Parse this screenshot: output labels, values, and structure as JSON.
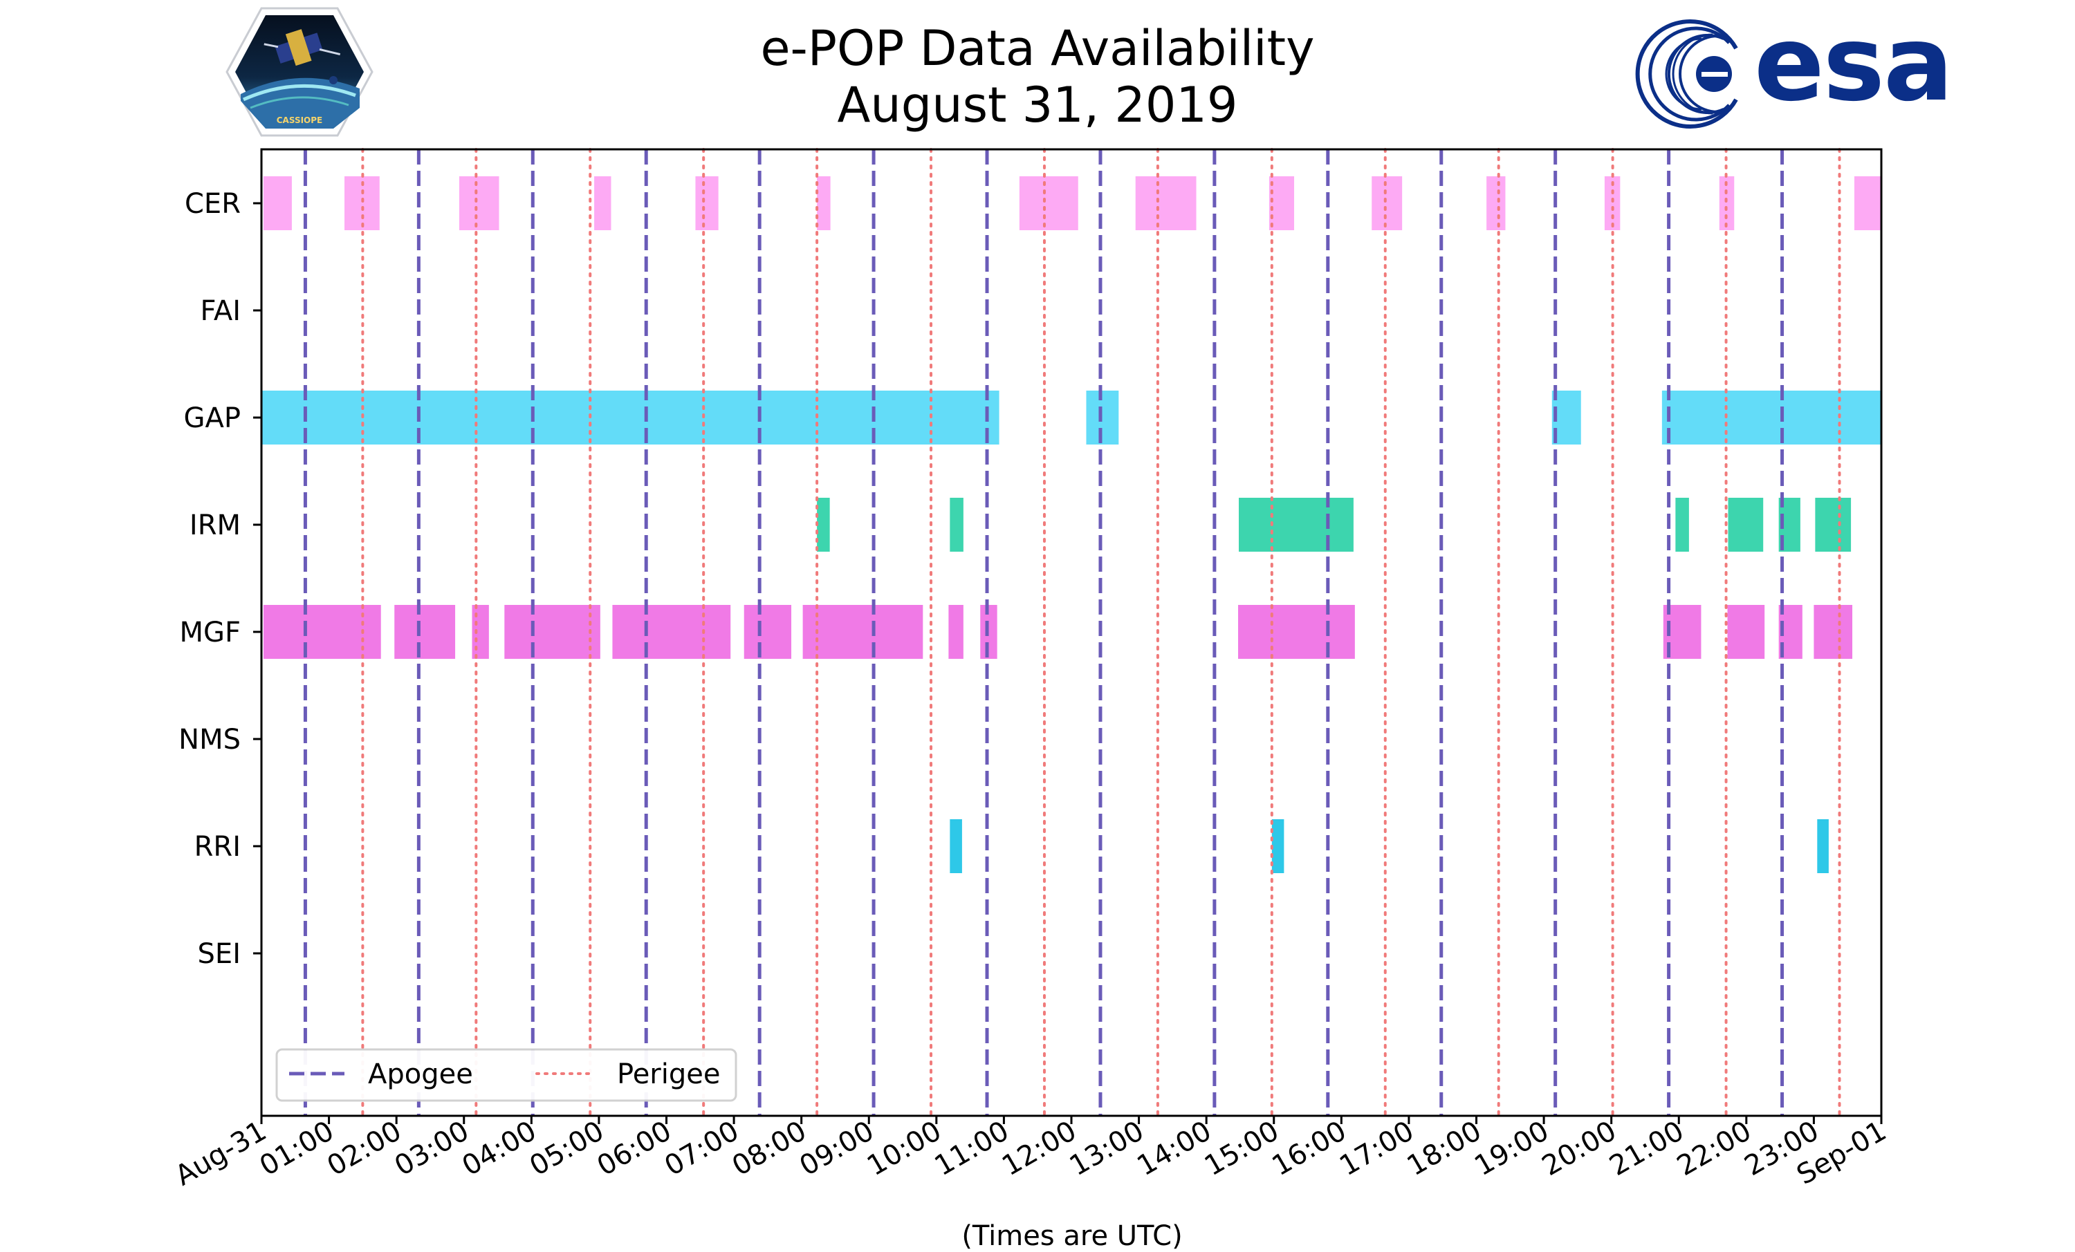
{
  "chart_data": {
    "type": "broken_barh",
    "title": "e-POP Data Availability",
    "subtitle": "August 31, 2019",
    "xlabel": "(Times are UTC)",
    "xlim_hours": [
      0,
      24
    ],
    "x_tick_labels": [
      "Aug-31",
      "01:00",
      "02:00",
      "03:00",
      "04:00",
      "05:00",
      "06:00",
      "07:00",
      "08:00",
      "09:00",
      "10:00",
      "11:00",
      "12:00",
      "13:00",
      "14:00",
      "15:00",
      "16:00",
      "17:00",
      "18:00",
      "19:00",
      "20:00",
      "21:00",
      "22:00",
      "23:00",
      "Sep-01"
    ],
    "categories": [
      "CER",
      "FAI",
      "GAP",
      "IRM",
      "MGF",
      "NMS",
      "RRI",
      "SEI"
    ],
    "series": [
      {
        "name": "CER",
        "color": "#fdaaf4",
        "intervals": [
          [
            0.03,
            0.45
          ],
          [
            1.23,
            1.75
          ],
          [
            2.93,
            3.52
          ],
          [
            4.93,
            5.18
          ],
          [
            6.43,
            6.77
          ],
          [
            8.23,
            8.43
          ],
          [
            11.23,
            12.1
          ],
          [
            12.95,
            13.85
          ],
          [
            14.93,
            15.3
          ],
          [
            16.45,
            16.9
          ],
          [
            18.15,
            18.43
          ],
          [
            19.9,
            20.13
          ],
          [
            21.6,
            21.82
          ],
          [
            23.6,
            24.0
          ]
        ]
      },
      {
        "name": "FAI",
        "color": "#ffffff",
        "intervals": []
      },
      {
        "name": "GAP",
        "color": "#63dcf8",
        "intervals": [
          [
            0.0,
            10.93
          ],
          [
            12.22,
            12.7
          ],
          [
            19.12,
            19.55
          ],
          [
            20.75,
            24.0
          ]
        ]
      },
      {
        "name": "IRM",
        "color": "#3dd5ae",
        "intervals": [
          [
            8.23,
            8.42
          ],
          [
            10.2,
            10.4
          ],
          [
            14.48,
            16.18
          ],
          [
            20.95,
            21.15
          ],
          [
            21.73,
            22.25
          ],
          [
            22.48,
            22.8
          ],
          [
            23.02,
            23.55
          ]
        ]
      },
      {
        "name": "MGF",
        "color": "#f07ae6",
        "intervals": [
          [
            0.03,
            1.77
          ],
          [
            1.97,
            2.87
          ],
          [
            3.12,
            3.37
          ],
          [
            3.6,
            5.02
          ],
          [
            5.2,
            6.95
          ],
          [
            7.15,
            7.85
          ],
          [
            8.02,
            9.8
          ],
          [
            10.18,
            10.4
          ],
          [
            10.65,
            10.9
          ],
          [
            14.47,
            16.2
          ],
          [
            20.77,
            21.33
          ],
          [
            21.72,
            22.27
          ],
          [
            22.48,
            22.83
          ],
          [
            23.0,
            23.57
          ]
        ]
      },
      {
        "name": "NMS",
        "color": "#ffffff",
        "intervals": []
      },
      {
        "name": "RRI",
        "color": "#2ec8e8",
        "intervals": [
          [
            10.2,
            10.38
          ],
          [
            14.97,
            15.15
          ],
          [
            23.05,
            23.22
          ]
        ]
      },
      {
        "name": "SEI",
        "color": "#ffffff",
        "intervals": []
      }
    ],
    "apogee_hours": [
      0.65,
      2.33,
      4.02,
      5.7,
      7.38,
      9.07,
      10.75,
      12.43,
      14.12,
      15.8,
      17.48,
      19.17,
      20.85,
      22.53
    ],
    "perigee_hours": [
      1.5,
      3.18,
      4.87,
      6.55,
      8.23,
      9.92,
      11.6,
      13.28,
      14.97,
      16.65,
      18.33,
      20.02,
      21.7,
      23.38
    ],
    "legend": {
      "entries": [
        "Apogee",
        "Perigee"
      ],
      "location": "lower-left"
    },
    "colors": {
      "apogee": "#6a5bb8",
      "perigee": "#f07a7a",
      "frame": "#000000"
    }
  },
  "logos": {
    "left": {
      "caption": "CASSIOPE"
    },
    "right": {
      "wordmark": "esa"
    }
  }
}
